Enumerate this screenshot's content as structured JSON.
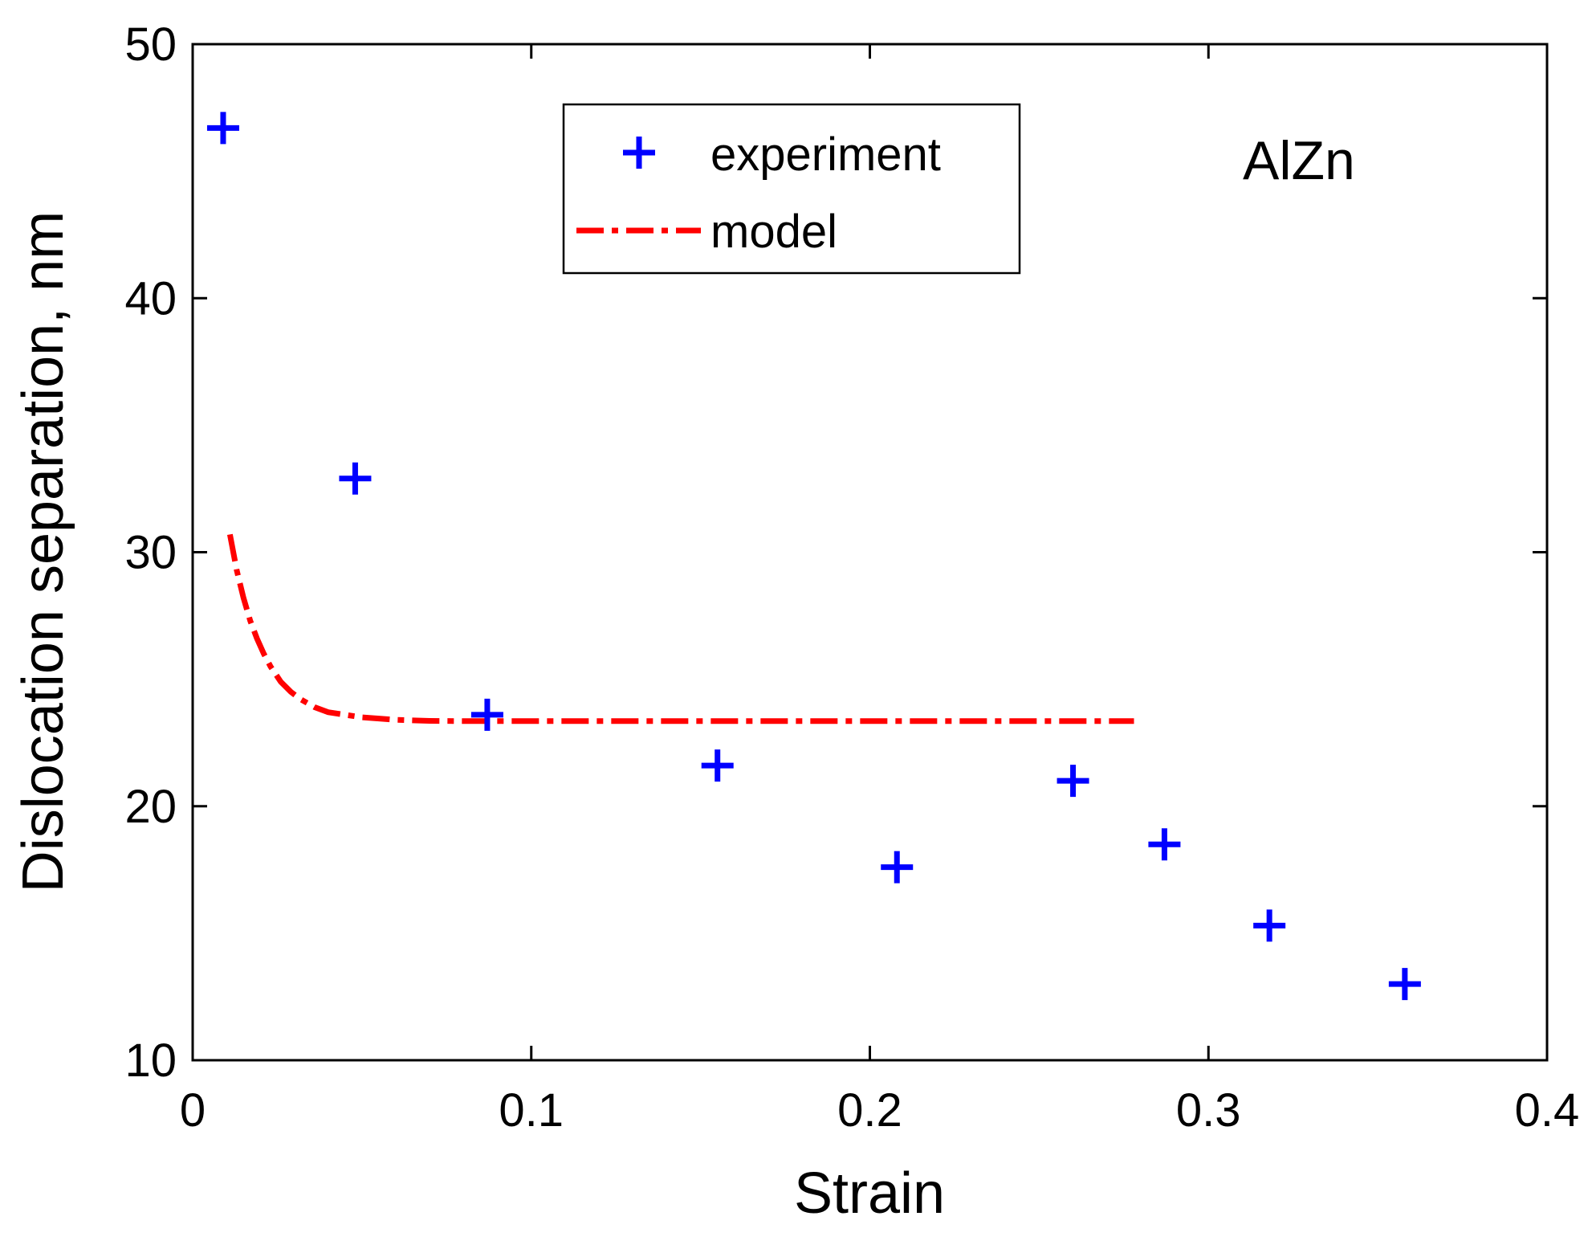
{
  "chart_data": {
    "type": "scatter",
    "title": "",
    "xlabel": "Strain",
    "ylabel": "Dislocation separation, nm",
    "xlim": [
      0,
      0.4
    ],
    "ylim": [
      10,
      50
    ],
    "grid": false,
    "x_ticks": [
      0,
      0.1,
      0.2,
      0.3,
      0.4
    ],
    "x_tick_labels": [
      "0",
      "0.1",
      "0.2",
      "0.3",
      "0.4"
    ],
    "y_ticks": [
      10,
      20,
      30,
      40,
      50
    ],
    "y_tick_labels": [
      "10",
      "20",
      "30",
      "40",
      "50"
    ],
    "annotation": "AlZn",
    "legend_position": "top-center",
    "series": [
      {
        "name": "experiment",
        "kind": "marker",
        "marker": "plus",
        "color": "#0000ff",
        "x": [
          0.009,
          0.048,
          0.087,
          0.155,
          0.208,
          0.26,
          0.287,
          0.318,
          0.358
        ],
        "y": [
          46.7,
          32.9,
          23.6,
          21.6,
          17.6,
          21.0,
          18.5,
          15.3,
          13.0
        ]
      },
      {
        "name": "model",
        "kind": "line",
        "style": "dash-dot",
        "color": "#ff0000",
        "x": [
          0.011,
          0.013,
          0.015,
          0.017,
          0.019,
          0.021,
          0.023,
          0.026,
          0.029,
          0.032,
          0.036,
          0.04,
          0.045,
          0.05,
          0.055,
          0.06,
          0.065,
          0.07,
          0.08,
          0.1,
          0.15,
          0.2,
          0.25,
          0.278
        ],
        "y": [
          30.7,
          29.3,
          28.2,
          27.3,
          26.6,
          26.0,
          25.5,
          24.9,
          24.5,
          24.2,
          23.9,
          23.7,
          23.6,
          23.5,
          23.45,
          23.4,
          23.38,
          23.36,
          23.35,
          23.35,
          23.35,
          23.35,
          23.35,
          23.35
        ]
      }
    ]
  }
}
